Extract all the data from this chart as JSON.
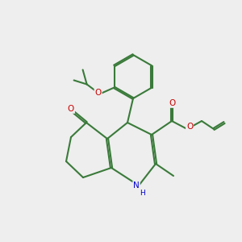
{
  "bg_color": "#eeeeee",
  "bond_color": "#3a7a3a",
  "atom_colors": {
    "O": "#cc0000",
    "N": "#0000cc",
    "C": "#3a7a3a"
  },
  "figsize": [
    3.0,
    3.0
  ],
  "dpi": 100
}
